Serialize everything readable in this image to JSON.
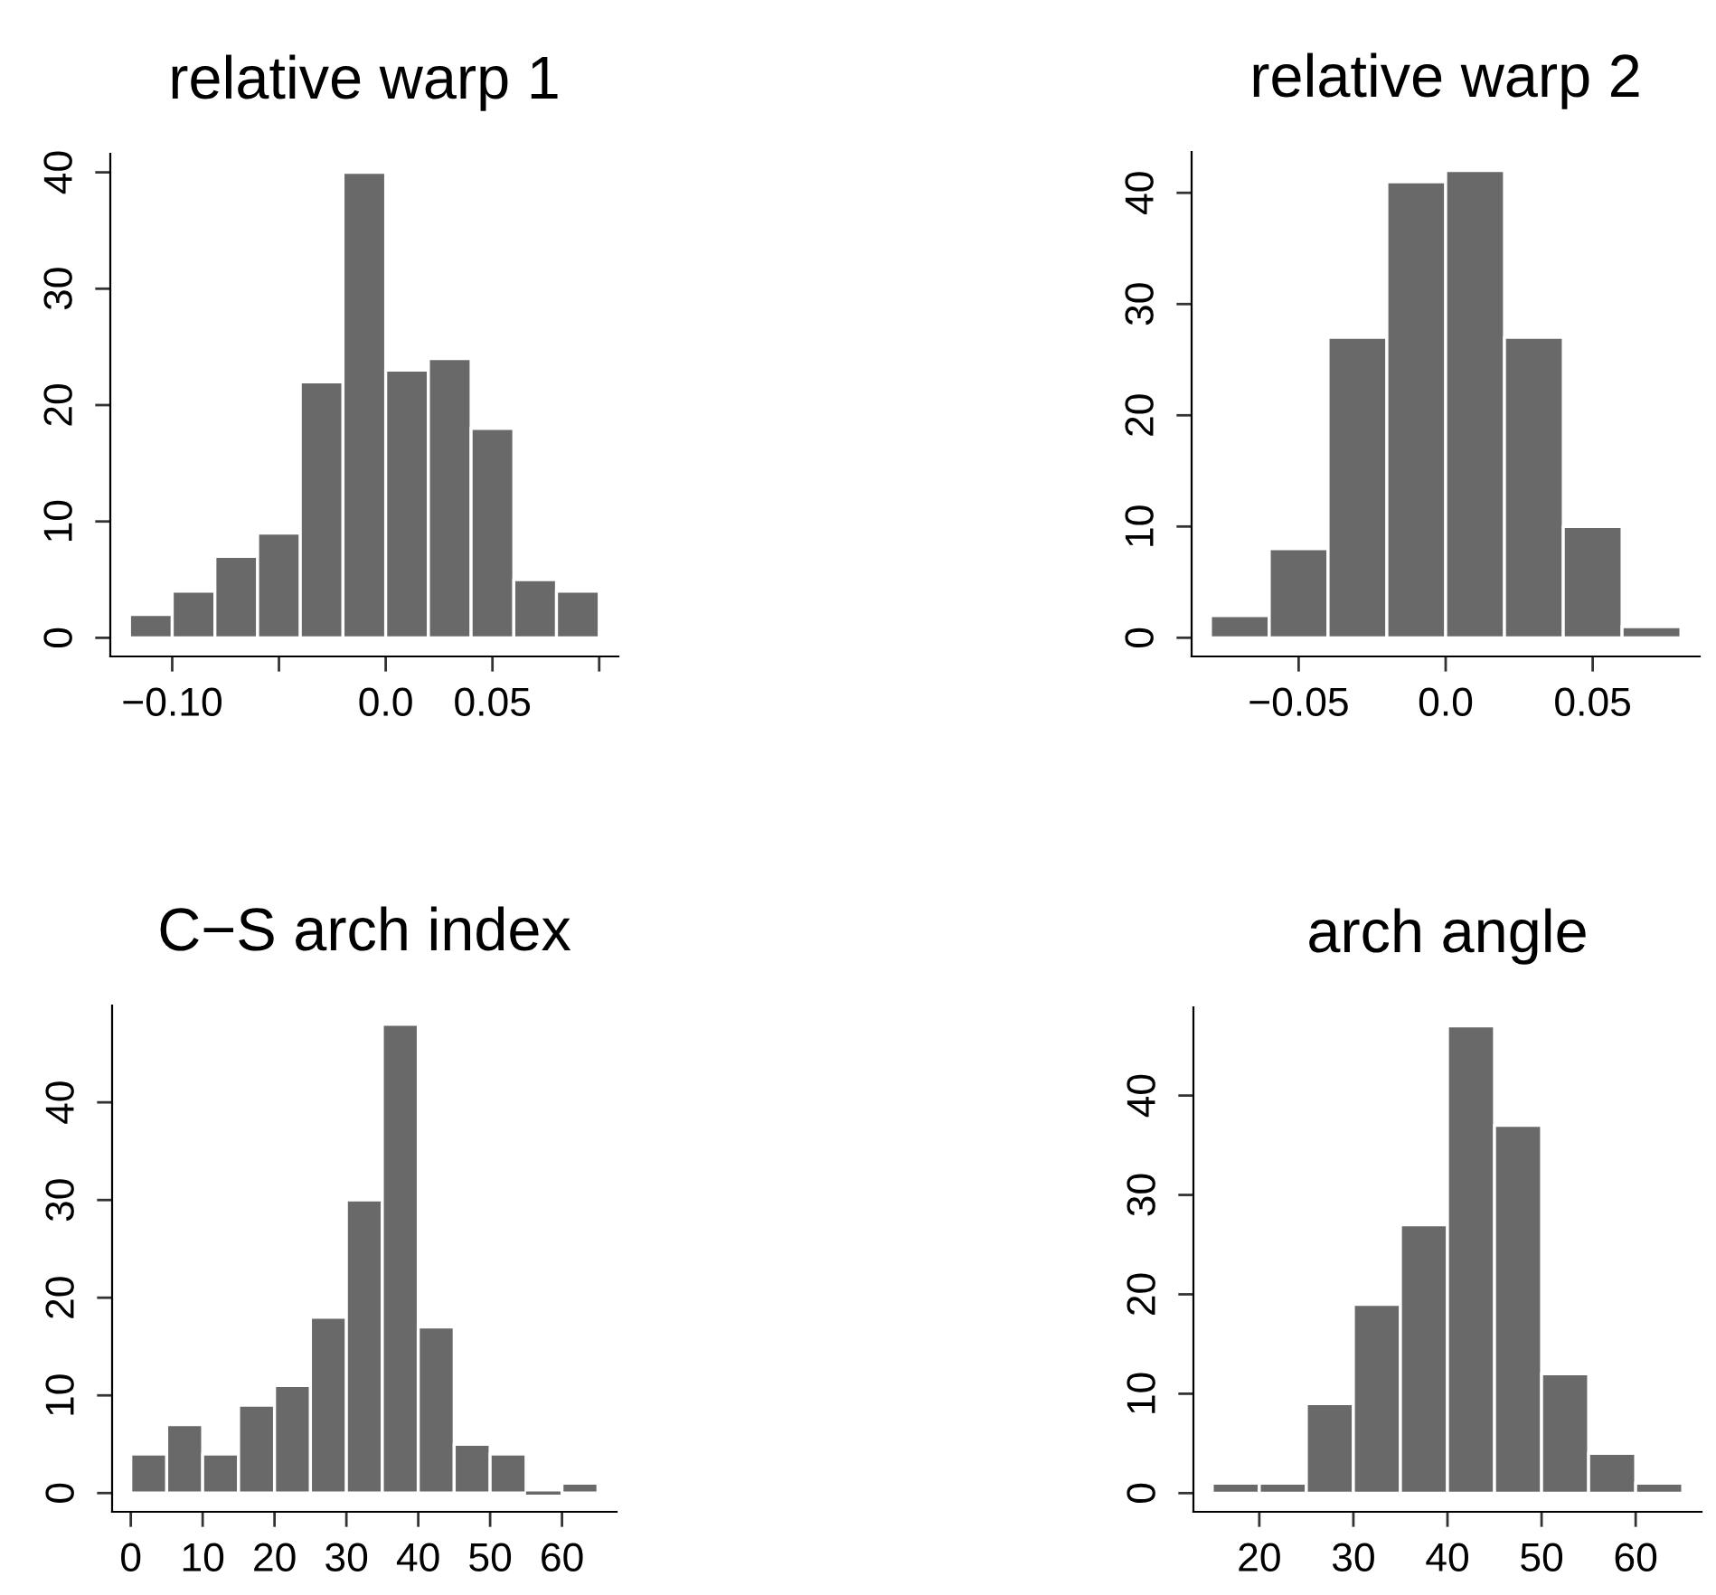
{
  "chart_data": [
    {
      "type": "histogram",
      "title": "relative warp 1",
      "bins": [
        -0.12,
        -0.1,
        -0.08,
        -0.06,
        -0.04,
        -0.02,
        0.0,
        0.02,
        0.04,
        0.06,
        0.08,
        0.1
      ],
      "values": [
        2,
        4,
        7,
        9,
        22,
        40,
        23,
        24,
        18,
        5,
        4
      ],
      "color": "#696969",
      "xlim": [
        -0.129,
        0.109
      ],
      "xticks": [
        {
          "value": -0.1,
          "label": "−0.10"
        },
        {
          "value": -0.05,
          "label": null
        },
        {
          "value": 0.0,
          "label": "0.0"
        },
        {
          "value": 0.05,
          "label": "0.05"
        },
        {
          "value": 0.1,
          "label": null
        }
      ],
      "ylim": [
        -1.6,
        41.6
      ],
      "yticks": [
        0,
        10,
        20,
        30,
        40
      ],
      "grid": false
    },
    {
      "type": "histogram",
      "title": "relative warp 2",
      "bins": [
        -0.08,
        -0.06,
        -0.04,
        -0.02,
        0.0,
        0.02,
        0.04,
        0.06,
        0.08
      ],
      "values": [
        2,
        8,
        27,
        41,
        42,
        27,
        10,
        1
      ],
      "color": "#696969",
      "xlim": [
        -0.0864,
        0.0864
      ],
      "xticks": [
        {
          "value": -0.05,
          "label": "−0.05"
        },
        {
          "value": 0.0,
          "label": "0.0"
        },
        {
          "value": 0.05,
          "label": "0.05"
        }
      ],
      "ylim": [
        -1.68,
        43.68
      ],
      "yticks": [
        0,
        10,
        20,
        30,
        40
      ],
      "grid": false
    },
    {
      "type": "histogram",
      "title": "C−S arch index",
      "bins": [
        0,
        5,
        10,
        15,
        20,
        25,
        30,
        35,
        40,
        45,
        50,
        55,
        60,
        65
      ],
      "values": [
        4,
        7,
        4,
        9,
        11,
        18,
        30,
        48,
        17,
        5,
        4,
        0,
        1
      ],
      "color": "#696969",
      "xlim": [
        -2.6,
        67.6
      ],
      "xticks": [
        0,
        10,
        20,
        30,
        40,
        50,
        60
      ],
      "ylim": [
        -1.92,
        49.92
      ],
      "yticks": [
        0,
        10,
        20,
        30,
        40
      ],
      "grid": false
    },
    {
      "type": "histogram",
      "title": "arch angle",
      "bins": [
        15,
        20,
        25,
        30,
        35,
        40,
        45,
        50,
        55,
        60,
        65
      ],
      "values": [
        1,
        1,
        9,
        19,
        27,
        47,
        37,
        12,
        4,
        1
      ],
      "color": "#696969",
      "xlim": [
        13,
        67
      ],
      "xticks": [
        20,
        30,
        40,
        50,
        60
      ],
      "ylim": [
        -1.88,
        48.88
      ],
      "yticks": [
        0,
        10,
        20,
        30,
        40
      ],
      "grid": false
    }
  ]
}
